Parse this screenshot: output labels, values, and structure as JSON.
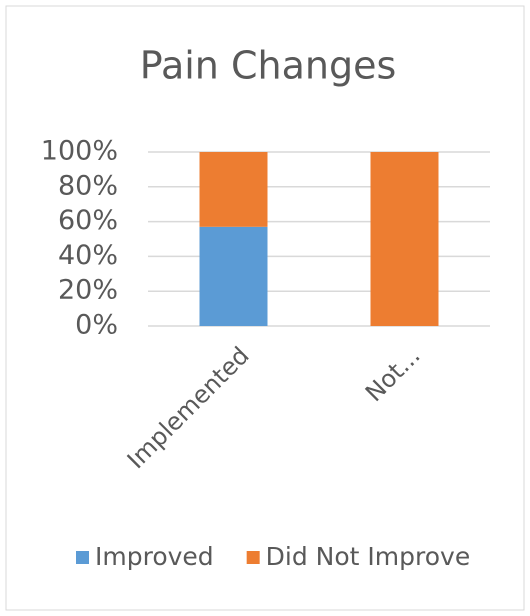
{
  "chart_data": {
    "type": "stacked_bar",
    "title": "Pain Changes",
    "categories": [
      "Implemented",
      "Not..."
    ],
    "series": [
      {
        "name": "Improved",
        "color": "#5b9bd5",
        "values": [
          57,
          0
        ]
      },
      {
        "name": "Did Not Improve",
        "color": "#ed7d31",
        "values": [
          43,
          100
        ]
      }
    ],
    "ylim": [
      0,
      100
    ],
    "yticks": [
      {
        "value": 0,
        "label": "0%"
      },
      {
        "value": 20,
        "label": "20%"
      },
      {
        "value": 40,
        "label": "40%"
      },
      {
        "value": 60,
        "label": "60%"
      },
      {
        "value": 80,
        "label": "80%"
      },
      {
        "value": 100,
        "label": "100%"
      }
    ],
    "grid": true,
    "legend": "bottom"
  }
}
